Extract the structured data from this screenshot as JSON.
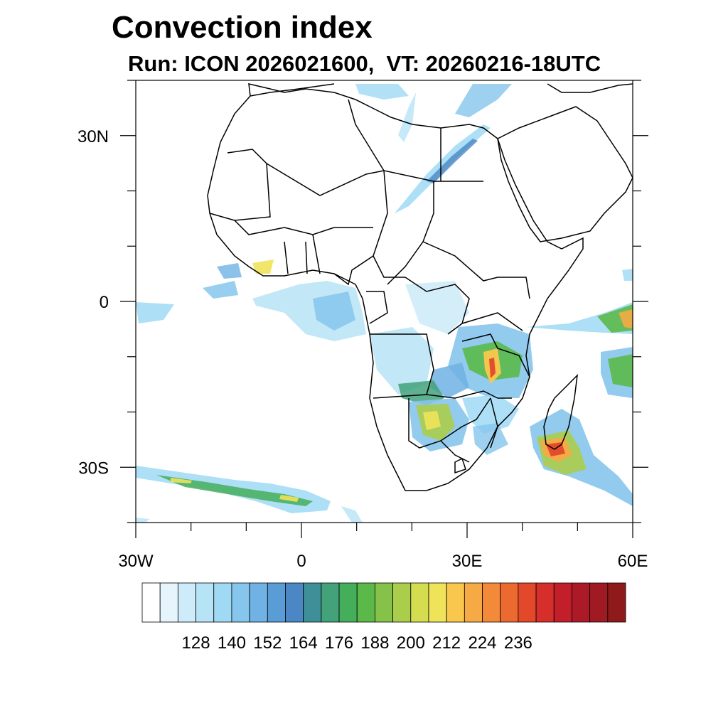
{
  "title": "Convection index",
  "subtitle": "Run: ICON 2026021600,  VT: 20260216-18UTC",
  "map": {
    "lon_range": [
      -30,
      60
    ],
    "lat_range": [
      -40,
      40
    ],
    "y_ticks": [
      {
        "lat": 30,
        "label": "30N"
      },
      {
        "lat": 0,
        "label": "0"
      },
      {
        "lat": -30,
        "label": "30S"
      }
    ],
    "x_ticks": [
      {
        "lon": -30,
        "label": "30W"
      },
      {
        "lon": 0,
        "label": "0"
      },
      {
        "lon": 30,
        "label": "30E"
      },
      {
        "lon": 60,
        "label": "60E"
      }
    ]
  },
  "colorbar": {
    "labels": [
      "128",
      "140",
      "152",
      "164",
      "176",
      "188",
      "200",
      "212",
      "224",
      "236"
    ],
    "colors": [
      "#ffffff",
      "#e6f4fb",
      "#cdebf8",
      "#b7e3f6",
      "#9fd9f4",
      "#86c5ec",
      "#6fb2e3",
      "#5a9dd6",
      "#4a87c4",
      "#3f8f98",
      "#43a27a",
      "#45ae5a",
      "#5bb94a",
      "#86c24a",
      "#abcd4c",
      "#d4dd50",
      "#efe35a",
      "#f9c74e",
      "#f6aa45",
      "#f28a3a",
      "#ec6a30",
      "#e3482a",
      "#d62e2a",
      "#c21f2b",
      "#ad1a27",
      "#a01a24",
      "#8e1a1c"
    ]
  }
}
